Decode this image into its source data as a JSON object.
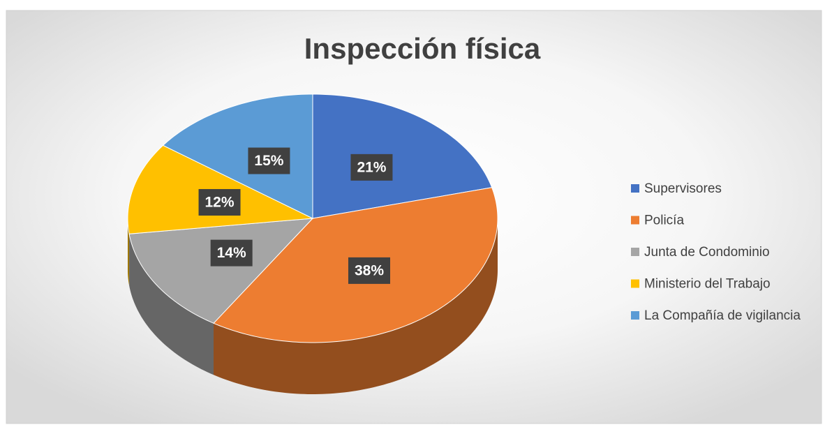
{
  "chart_data": {
    "type": "pie",
    "title": "Inspección física",
    "categories": [
      "Supervisores",
      "Policía",
      "Junta de Condominio",
      "Ministerio del Trabajo",
      "La Compañía de vigilancia"
    ],
    "values": [
      21,
      38,
      14,
      12,
      15
    ],
    "value_labels": [
      "21%",
      "38%",
      "14%",
      "12%",
      "15%"
    ],
    "colors": [
      "#4472c4",
      "#ed7d31",
      "#a5a5a5",
      "#ffc000",
      "#5b9bd5"
    ],
    "legend": "right"
  }
}
